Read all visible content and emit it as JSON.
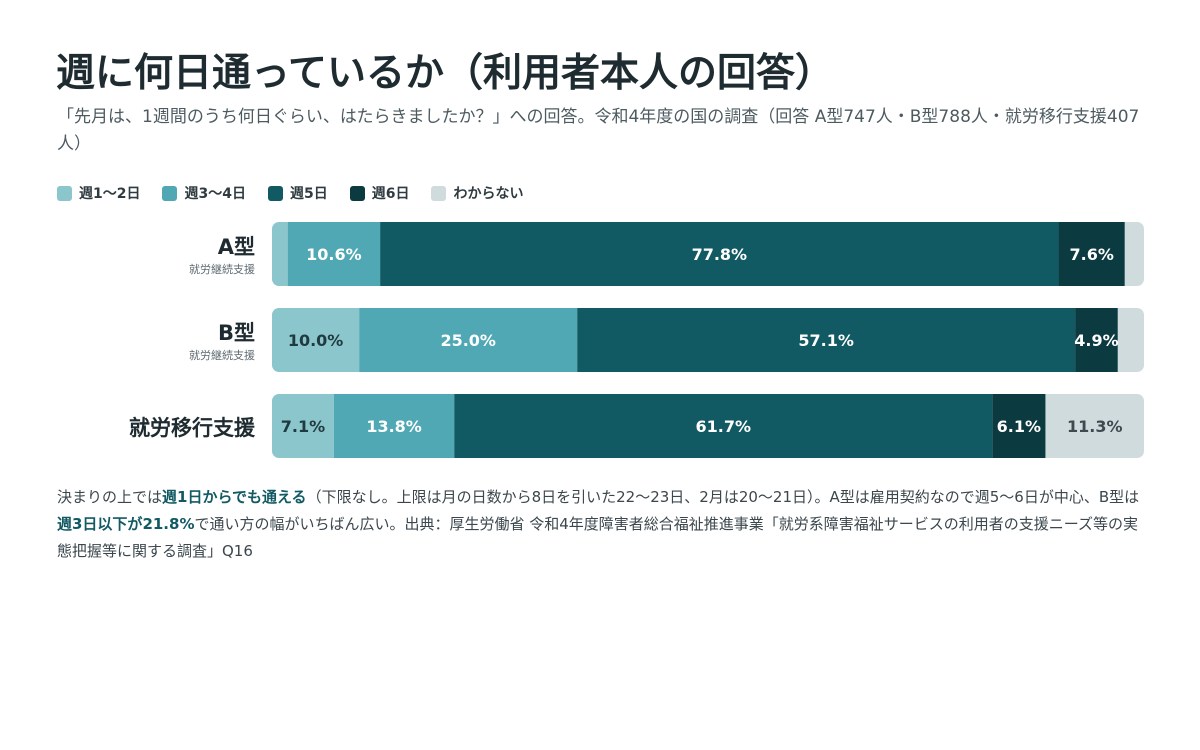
{
  "title": "週に何日通っているか（利用者本人の回答）",
  "subtitle": "「先月は、1週間のうち何日ぐらい、はたらきましたか？」への回答。令和4年度の国の調査（回答 A型747人・B型788人・就労移行支援407人）",
  "note": {
    "p1": "決まりの上では",
    "h1": "週1日からでも通える",
    "p2": "（下限なし。上限は月の日数から8日を引いた22〜23日、2月は20〜21日）。A型は雇用契約なので週5〜6日が中心、B型は",
    "h2": "週3日以下が21.8%",
    "p3": "で通い方の幅がいちばん広い。出典：厚生労働省 令和4年度障害者総合福祉推進事業「就労系障害福祉サービスの利用者の支援ニーズ等の実態把握等に関する調査」Q16"
  },
  "chart_data": {
    "type": "bar",
    "orientation": "horizontal",
    "stacked": true,
    "xlim": [
      0,
      100
    ],
    "legend_position": "top-left",
    "categories": [
      {
        "label": "A型",
        "sublabel": "就労継続支援"
      },
      {
        "label": "B型",
        "sublabel": "就労継続支援"
      },
      {
        "label": "就労移行支援",
        "sublabel": ""
      }
    ],
    "series": [
      {
        "name": "週1〜2日",
        "color": "#8cc6cd",
        "values": [
          1.8,
          10.0,
          7.1
        ],
        "labels": [
          "",
          "10.0%",
          "7.1%"
        ]
      },
      {
        "name": "週3〜4日",
        "color": "#4fa8b3",
        "values": [
          10.6,
          25.0,
          13.8
        ],
        "labels": [
          "10.6%",
          "25.0%",
          "13.8%"
        ]
      },
      {
        "name": "週5日",
        "color": "#115a63",
        "values": [
          77.8,
          57.1,
          61.7
        ],
        "labels": [
          "77.8%",
          "57.1%",
          "61.7%"
        ]
      },
      {
        "name": "週6日",
        "color": "#0b3a41",
        "values": [
          7.6,
          4.9,
          6.1
        ],
        "labels": [
          "7.6%",
          "4.9%",
          "6.1%"
        ]
      },
      {
        "name": "わからない",
        "color": "#cfdbdd",
        "values": [
          2.2,
          3.0,
          11.3
        ],
        "labels": [
          "",
          "",
          "11.3%"
        ]
      }
    ]
  }
}
